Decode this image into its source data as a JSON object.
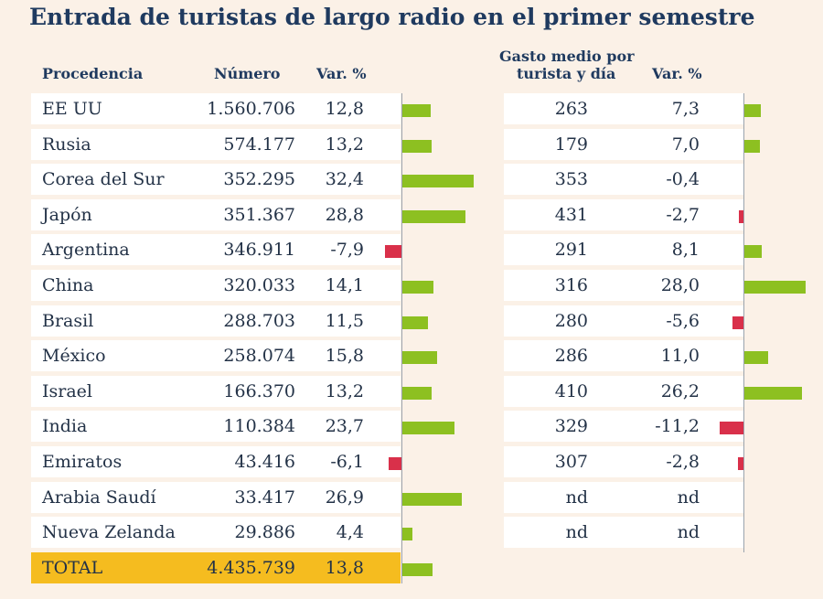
{
  "chart_data": {
    "type": "table",
    "title": "Entrada de turistas de largo radio en el primer semestre",
    "columns": {
      "procedencia": "Procedencia",
      "numero": "Número",
      "var": "Var. %",
      "gasto_line1": "Gasto medio por",
      "gasto_line2": "turista y día",
      "var2": "Var. %"
    },
    "rows": [
      {
        "name": "EE UU",
        "numero": "1.560.706",
        "var": 12.8,
        "var_label": "12,8",
        "gasto": "263",
        "var2": 7.3,
        "var2_label": "7,3"
      },
      {
        "name": "Rusia",
        "numero": "574.177",
        "var": 13.2,
        "var_label": "13,2",
        "gasto": "179",
        "var2": 7.0,
        "var2_label": "7,0"
      },
      {
        "name": "Corea del Sur",
        "numero": "352.295",
        "var": 32.4,
        "var_label": "32,4",
        "gasto": "353",
        "var2": -0.4,
        "var2_label": "-0,4"
      },
      {
        "name": "Japón",
        "numero": "351.367",
        "var": 28.8,
        "var_label": "28,8",
        "gasto": "431",
        "var2": -2.7,
        "var2_label": "-2,7"
      },
      {
        "name": "Argentina",
        "numero": "346.911",
        "var": -7.9,
        "var_label": "-7,9",
        "gasto": "291",
        "var2": 8.1,
        "var2_label": "8,1"
      },
      {
        "name": "China",
        "numero": "320.033",
        "var": 14.1,
        "var_label": "14,1",
        "gasto": "316",
        "var2": 28.0,
        "var2_label": "28,0"
      },
      {
        "name": "Brasil",
        "numero": "288.703",
        "var": 11.5,
        "var_label": "11,5",
        "gasto": "280",
        "var2": -5.6,
        "var2_label": "-5,6"
      },
      {
        "name": "México",
        "numero": "258.074",
        "var": 15.8,
        "var_label": "15,8",
        "gasto": "286",
        "var2": 11.0,
        "var2_label": "11,0"
      },
      {
        "name": "Israel",
        "numero": "166.370",
        "var": 13.2,
        "var_label": "13,2",
        "gasto": "410",
        "var2": 26.2,
        "var2_label": "26,2"
      },
      {
        "name": "India",
        "numero": "110.384",
        "var": 23.7,
        "var_label": "23,7",
        "gasto": "329",
        "var2": -11.2,
        "var2_label": "-11,2"
      },
      {
        "name": "Emiratos",
        "numero": "43.416",
        "var": -6.1,
        "var_label": "-6,1",
        "gasto": "307",
        "var2": -2.8,
        "var2_label": "-2,8"
      },
      {
        "name": "Arabia Saudí",
        "numero": "33.417",
        "var": 26.9,
        "var_label": "26,9",
        "gasto": "nd",
        "var2": null,
        "var2_label": "nd"
      },
      {
        "name": "Nueva Zelanda",
        "numero": "29.886",
        "var": 4.4,
        "var_label": "4,4",
        "gasto": "nd",
        "var2": null,
        "var2_label": "nd"
      }
    ],
    "total": {
      "name": "TOTAL",
      "numero": "4.435.739",
      "var": 13.8,
      "var_label": "13,8"
    },
    "colors": {
      "positive": "#8dc021",
      "negative": "#d9304a",
      "total_row": "#f5bc1f",
      "title": "#1f3a5f"
    }
  }
}
